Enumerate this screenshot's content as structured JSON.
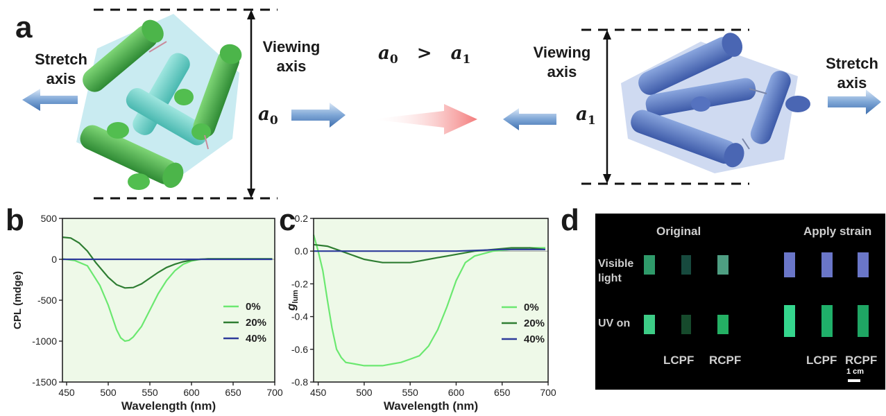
{
  "panel_a": {
    "label": "a",
    "stretch_label_left": [
      "Stretch",
      "axis"
    ],
    "stretch_label_right": [
      "Stretch",
      "axis"
    ],
    "viewing_label_left": [
      "Viewing",
      "axis"
    ],
    "viewing_label_right": [
      "Viewing",
      "axis"
    ],
    "relation": {
      "left": "a",
      "left_sub": "0",
      "op": ">",
      "right": "a",
      "right_sub": "1"
    },
    "a0": {
      "sym": "a",
      "sub": "0"
    },
    "a1": {
      "sym": "a",
      "sub": "1"
    }
  },
  "panel_b": {
    "label": "b"
  },
  "panel_c": {
    "label": "c"
  },
  "panel_d": {
    "label": "d",
    "heading_original": "Original",
    "heading_strain": "Apply strain",
    "row_visible": [
      "Visible",
      "light"
    ],
    "row_uv": "UV on",
    "col_left_filter": "LCPF",
    "col_right_filter": "RCPF",
    "col_left_filter_2": "LCPF",
    "col_right_filter_2": "RCPF",
    "scale": "1 cm",
    "colors": {
      "visible_original": [
        "#2f9a6a",
        "#174a3e",
        "#4e9e82"
      ],
      "visible_strain": [
        "#6a76c8",
        "#6a76c8",
        "#6a76c8"
      ],
      "uv_original": [
        "#3dcc86",
        "#164a2c",
        "#24b064"
      ],
      "uv_strain": [
        "#35d68e",
        "#1fb06a",
        "#1fa664"
      ]
    }
  },
  "chart_data": [
    {
      "type": "line",
      "xlabel": "Wavelength (nm)",
      "ylabel": "CPL (mdge)",
      "xlim": [
        445,
        700
      ],
      "ylim": [
        -1500,
        500
      ],
      "xticks": [
        "450",
        "500",
        "550",
        "600",
        "650",
        "700"
      ],
      "yticks": [
        "500",
        "0",
        "-500",
        "-1000",
        "-1500"
      ],
      "legend_position": "right",
      "series": [
        {
          "name": "0%",
          "color": "#6be870",
          "x": [
            445,
            460,
            475,
            490,
            500,
            510,
            515,
            520,
            525,
            530,
            540,
            550,
            560,
            570,
            580,
            590,
            600,
            610,
            620,
            640,
            660,
            680,
            697
          ],
          "y": [
            5,
            -15,
            -80,
            -320,
            -560,
            -860,
            -960,
            -1000,
            -990,
            -950,
            -820,
            -620,
            -420,
            -260,
            -140,
            -60,
            -20,
            0,
            5,
            5,
            5,
            5,
            5
          ]
        },
        {
          "name": "20%",
          "color": "#2e7d32",
          "x": [
            445,
            455,
            465,
            475,
            485,
            500,
            510,
            520,
            530,
            540,
            550,
            560,
            570,
            580,
            590,
            600,
            610,
            620,
            640,
            660,
            680,
            697
          ],
          "y": [
            270,
            260,
            200,
            100,
            -40,
            -220,
            -310,
            -350,
            -345,
            -300,
            -230,
            -160,
            -100,
            -60,
            -30,
            -10,
            0,
            5,
            5,
            5,
            5,
            5
          ]
        },
        {
          "name": "40%",
          "color": "#2c3a9a",
          "x": [
            445,
            500,
            550,
            600,
            650,
            697
          ],
          "y": [
            0,
            0,
            0,
            0,
            0,
            0
          ]
        }
      ]
    },
    {
      "type": "line",
      "xlabel": "Wavelength (nm)",
      "ylabel": "g_lum",
      "xlim": [
        445,
        700
      ],
      "ylim": [
        -0.8,
        0.2
      ],
      "xticks": [
        "450",
        "500",
        "550",
        "600",
        "650",
        "700"
      ],
      "yticks": [
        "0.2",
        "0.0",
        "-0.2",
        "-0.4",
        "-0.6",
        "-0.8"
      ],
      "legend_position": "right",
      "series": [
        {
          "name": "0%",
          "color": "#6be870",
          "x": [
            445,
            450,
            455,
            460,
            465,
            470,
            475,
            480,
            490,
            500,
            510,
            520,
            530,
            540,
            550,
            560,
            570,
            580,
            590,
            600,
            610,
            620,
            640,
            660,
            680,
            697
          ],
          "y": [
            0.1,
            0.0,
            -0.12,
            -0.3,
            -0.47,
            -0.6,
            -0.65,
            -0.68,
            -0.69,
            -0.7,
            -0.7,
            -0.7,
            -0.69,
            -0.68,
            -0.66,
            -0.64,
            -0.58,
            -0.48,
            -0.34,
            -0.18,
            -0.07,
            -0.03,
            0.0,
            0.01,
            0.02,
            0.02
          ]
        },
        {
          "name": "20%",
          "color": "#2e7d32",
          "x": [
            445,
            460,
            475,
            490,
            500,
            510,
            520,
            530,
            540,
            550,
            560,
            570,
            580,
            590,
            600,
            610,
            620,
            640,
            660,
            680,
            697
          ],
          "y": [
            0.04,
            0.03,
            0.0,
            -0.03,
            -0.05,
            -0.06,
            -0.07,
            -0.07,
            -0.07,
            -0.07,
            -0.06,
            -0.05,
            -0.04,
            -0.03,
            -0.02,
            -0.01,
            0.0,
            0.01,
            0.02,
            0.02,
            0.01
          ]
        },
        {
          "name": "40%",
          "color": "#2c3a9a",
          "x": [
            445,
            500,
            550,
            600,
            650,
            697
          ],
          "y": [
            0.0,
            0.0,
            0.0,
            0.0,
            0.01,
            0.01
          ]
        }
      ]
    }
  ]
}
